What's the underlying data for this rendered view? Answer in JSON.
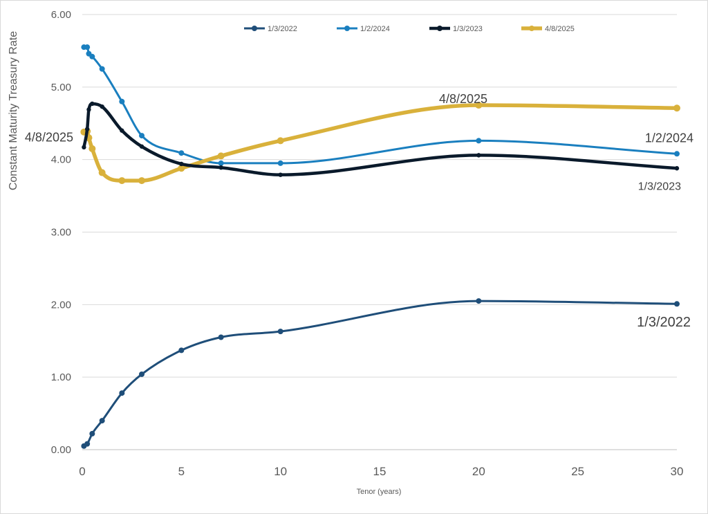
{
  "chart_data": {
    "type": "line",
    "title": "",
    "xlabel": "Tenor (years)",
    "ylabel": "Constant Maturity Treasury Rate",
    "xlim": [
      0,
      30
    ],
    "ylim": [
      0,
      6
    ],
    "x_ticks": [
      "0",
      "5",
      "10",
      "15",
      "20",
      "25",
      "30"
    ],
    "y_ticks": [
      "0.00",
      "1.00",
      "2.00",
      "3.00",
      "4.00",
      "5.00",
      "6.00"
    ],
    "grid": "horizontal",
    "legend_position": "top",
    "series": [
      {
        "name": "1/3/2022",
        "color": "#1f4e79",
        "x": [
          0.083,
          0.25,
          0.5,
          1,
          2,
          3,
          5,
          7,
          10,
          20,
          30
        ],
        "values": [
          0.05,
          0.08,
          0.22,
          0.4,
          0.78,
          1.04,
          1.37,
          1.55,
          1.63,
          2.05,
          2.01
        ]
      },
      {
        "name": "1/2/2024",
        "color": "#1a7fbf",
        "x": [
          0.083,
          0.25,
          0.33,
          0.5,
          1,
          2,
          3,
          5,
          7,
          10,
          20,
          30
        ],
        "values": [
          5.55,
          5.55,
          5.46,
          5.42,
          5.25,
          4.8,
          4.33,
          4.09,
          3.95,
          3.95,
          4.26,
          4.08
        ]
      },
      {
        "name": "1/3/2023",
        "color": "#0a1a2b",
        "x": [
          0.083,
          0.25,
          0.33,
          0.5,
          1,
          2,
          3,
          5,
          7,
          10,
          20,
          30
        ],
        "values": [
          4.17,
          4.42,
          4.69,
          4.77,
          4.73,
          4.4,
          4.18,
          3.94,
          3.89,
          3.79,
          4.06,
          3.88
        ]
      },
      {
        "name": "4/8/2025",
        "color": "#d9b13b",
        "x": [
          0.083,
          0.25,
          0.33,
          0.5,
          1,
          2,
          3,
          5,
          7,
          10,
          20,
          30
        ],
        "values": [
          4.38,
          4.39,
          4.3,
          4.15,
          3.82,
          3.71,
          3.71,
          3.88,
          4.05,
          4.26,
          4.75,
          4.71
        ]
      }
    ],
    "annotations": [
      {
        "text": "4/8/2025",
        "x": 18,
        "y": 4.78
      },
      {
        "text": "1/2/2024",
        "x": 30,
        "y": 4.24
      },
      {
        "text": "1/3/2023",
        "x": 30,
        "y": 3.58
      },
      {
        "text": "1/3/2022",
        "x": 30,
        "y": 1.7
      },
      {
        "text": "4/8/2025",
        "x": 0,
        "y": 4.25
      }
    ]
  }
}
